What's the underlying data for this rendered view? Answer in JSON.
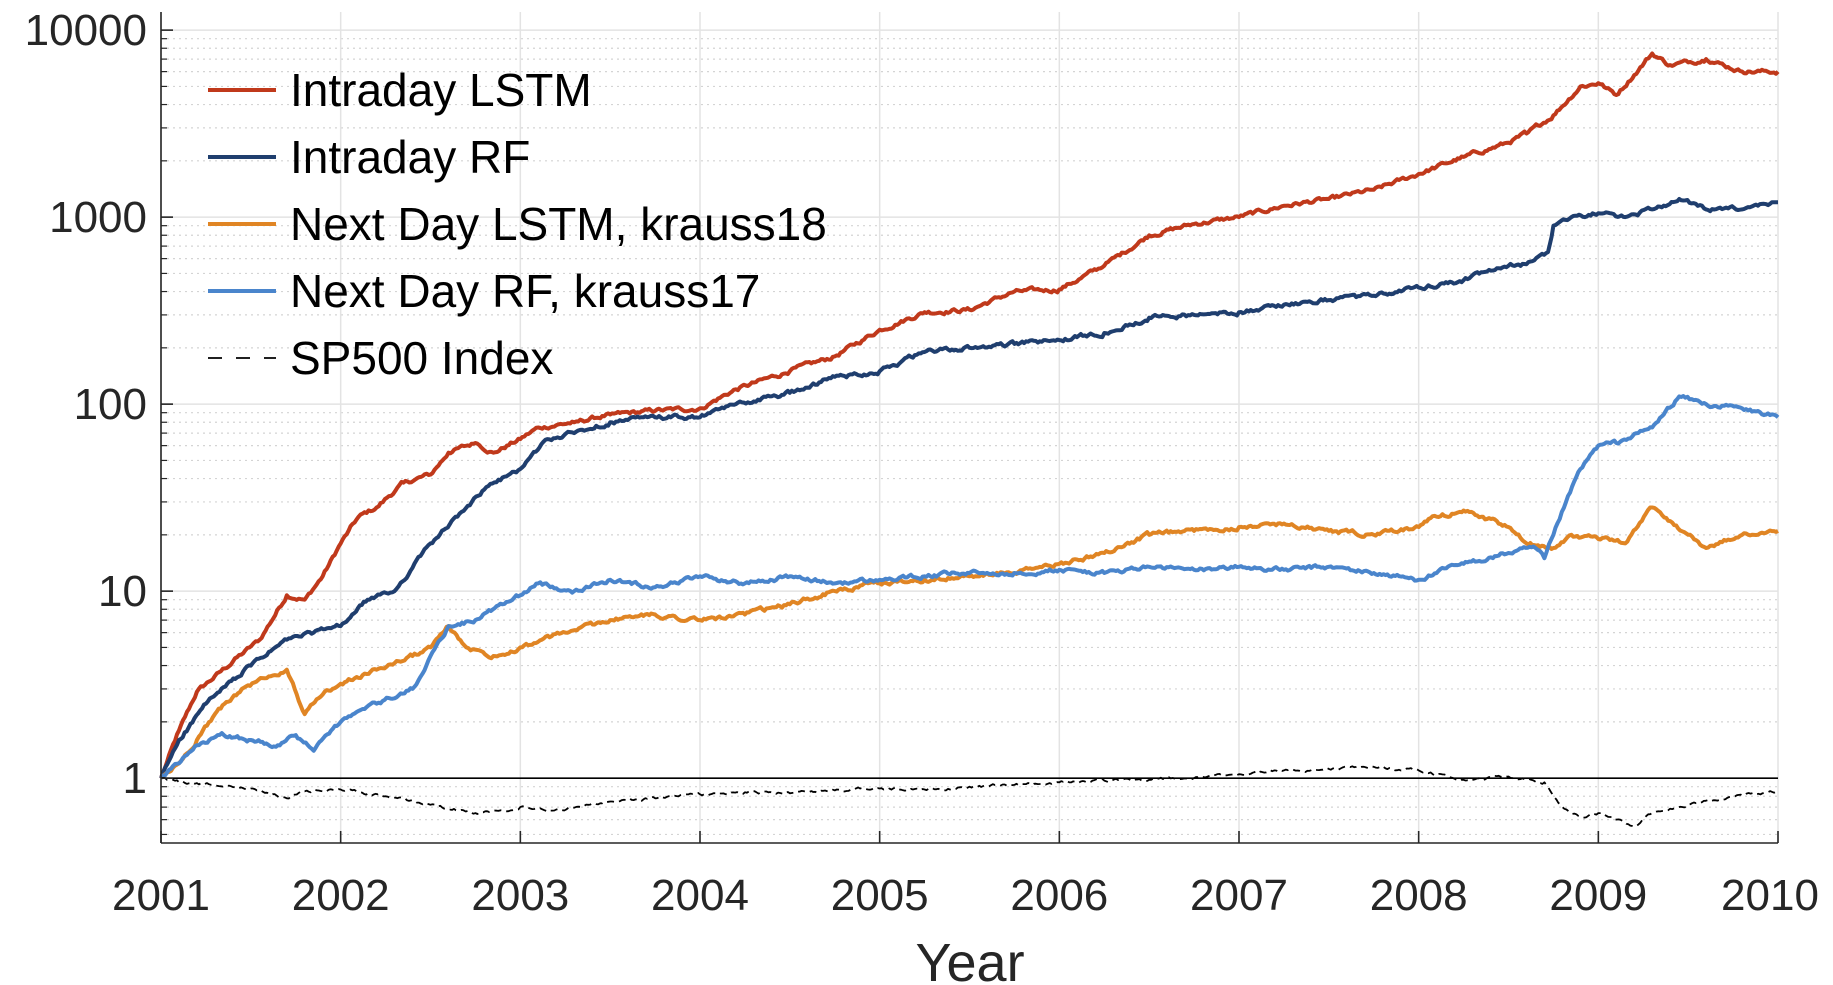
{
  "chart_data": {
    "type": "line",
    "yscale": "log",
    "title": "",
    "xlabel": "Year",
    "ylabel": "",
    "xlim": [
      2001,
      2010
    ],
    "ylim": [
      0.45,
      12500
    ],
    "grid": true,
    "legend_position": "top-left",
    "x_ticks": [
      2001,
      2002,
      2003,
      2004,
      2005,
      2006,
      2007,
      2008,
      2009,
      2010
    ],
    "x_tick_labels": [
      "2001",
      "2002",
      "2003",
      "2004",
      "2005",
      "2006",
      "2007",
      "2008",
      "2009",
      "2010"
    ],
    "y_ticks": [
      1,
      10,
      100,
      1000,
      10000
    ],
    "y_tick_labels": [
      "1",
      "10",
      "100",
      "1000",
      "10000"
    ],
    "reference_line": 1,
    "series": [
      {
        "name": "Intraday LSTM",
        "color": "#c0391b",
        "dashed": false,
        "x": [
          2001.0,
          2001.1,
          2001.2,
          2001.4,
          2001.55,
          2001.7,
          2001.8,
          2001.9,
          2002.0,
          2002.1,
          2002.2,
          2002.35,
          2002.5,
          2002.6,
          2002.75,
          2002.85,
          2003.0,
          2003.1,
          2003.3,
          2003.5,
          2003.75,
          2004.0,
          2004.2,
          2004.5,
          2004.75,
          2005.0,
          2005.25,
          2005.5,
          2005.75,
          2006.0,
          2006.25,
          2006.5,
          2006.75,
          2007.0,
          2007.25,
          2007.5,
          2007.75,
          2008.0,
          2008.25,
          2008.5,
          2008.6,
          2008.75,
          2008.9,
          2009.0,
          2009.1,
          2009.3,
          2009.4,
          2009.6,
          2009.8,
          2010.0
        ],
        "values": [
          1.0,
          1.8,
          2.9,
          4.2,
          5.5,
          9.5,
          9.0,
          12.0,
          18.0,
          25.0,
          28.0,
          38.0,
          42.0,
          55.0,
          62.0,
          55.0,
          65.0,
          75.0,
          80.0,
          88.0,
          92.0,
          95.0,
          120.0,
          150.0,
          180.0,
          250.0,
          310.0,
          320.0,
          400.0,
          410.0,
          550.0,
          800.0,
          920.0,
          1000.0,
          1150.0,
          1250.0,
          1400.0,
          1700.0,
          2100.0,
          2500.0,
          2800.0,
          3500.0,
          5000.0,
          5200.0,
          4500.0,
          7500.0,
          6500.0,
          7000.0,
          6000.0,
          6000.0
        ]
      },
      {
        "name": "Intraday RF",
        "color": "#1f3e6e",
        "dashed": false,
        "x": [
          2001.0,
          2001.1,
          2001.25,
          2001.5,
          2001.7,
          2001.85,
          2002.0,
          2002.15,
          2002.3,
          2002.5,
          2002.65,
          2002.8,
          2003.0,
          2003.15,
          2003.3,
          2003.5,
          2003.75,
          2004.0,
          2004.2,
          2004.5,
          2004.75,
          2005.0,
          2005.25,
          2005.5,
          2005.75,
          2006.0,
          2006.25,
          2006.5,
          2006.75,
          2007.0,
          2007.25,
          2007.5,
          2007.75,
          2008.0,
          2008.25,
          2008.5,
          2008.6,
          2008.72,
          2008.75,
          2008.85,
          2009.0,
          2009.15,
          2009.3,
          2009.45,
          2009.6,
          2009.8,
          2010.0
        ],
        "values": [
          1.0,
          1.6,
          2.5,
          4.0,
          5.5,
          6.0,
          6.5,
          9.0,
          10.0,
          18.0,
          25.0,
          35.0,
          45.0,
          65.0,
          70.0,
          80.0,
          85.0,
          85.0,
          100.0,
          115.0,
          140.0,
          150.0,
          190.0,
          200.0,
          210.0,
          220.0,
          240.0,
          290.0,
          300.0,
          310.0,
          340.0,
          360.0,
          380.0,
          420.0,
          460.0,
          550.0,
          560.0,
          650.0,
          900.0,
          1000.0,
          1050.0,
          1000.0,
          1100.0,
          1250.0,
          1100.0,
          1100.0,
          1200.0
        ]
      },
      {
        "name": "Next Day LSTM, krauss18",
        "color": "#e08524",
        "dashed": false,
        "x": [
          2001.0,
          2001.1,
          2001.2,
          2001.3,
          2001.45,
          2001.6,
          2001.7,
          2001.8,
          2001.9,
          2002.0,
          2002.2,
          2002.4,
          2002.5,
          2002.6,
          2002.7,
          2002.85,
          2003.0,
          2003.25,
          2003.5,
          2003.75,
          2004.0,
          2004.25,
          2004.5,
          2004.75,
          2005.0,
          2005.25,
          2005.5,
          2005.75,
          2006.0,
          2006.25,
          2006.5,
          2006.75,
          2007.0,
          2007.25,
          2007.5,
          2007.75,
          2008.0,
          2008.1,
          2008.25,
          2008.5,
          2008.6,
          2008.75,
          2008.85,
          2009.0,
          2009.15,
          2009.3,
          2009.5,
          2009.6,
          2009.8,
          2010.0
        ],
        "values": [
          1.0,
          1.2,
          1.6,
          2.2,
          3.0,
          3.5,
          3.8,
          2.2,
          2.8,
          3.2,
          3.8,
          4.5,
          5.0,
          6.5,
          5.0,
          4.5,
          5.0,
          6.0,
          7.0,
          7.5,
          7.0,
          7.5,
          8.5,
          10.0,
          11.0,
          11.5,
          12.0,
          12.5,
          14.0,
          16.0,
          20.0,
          21.0,
          22.0,
          23.0,
          21.0,
          20.0,
          22.0,
          25.0,
          27.0,
          22.0,
          18.0,
          17.0,
          20.0,
          19.0,
          18.0,
          28.0,
          20.0,
          17.0,
          20.0,
          21.0
        ]
      },
      {
        "name": "Next Day RF, krauss17",
        "color": "#4a85cc",
        "dashed": false,
        "x": [
          2001.0,
          2001.1,
          2001.2,
          2001.35,
          2001.5,
          2001.65,
          2001.75,
          2001.85,
          2002.0,
          2002.2,
          2002.4,
          2002.5,
          2002.6,
          2002.75,
          2002.9,
          2003.0,
          2003.1,
          2003.3,
          2003.5,
          2003.75,
          2004.0,
          2004.25,
          2004.5,
          2004.75,
          2005.0,
          2005.25,
          2005.5,
          2005.75,
          2006.0,
          2006.25,
          2006.5,
          2006.75,
          2007.0,
          2007.25,
          2007.5,
          2007.75,
          2008.0,
          2008.1,
          2008.25,
          2008.5,
          2008.65,
          2008.7,
          2008.75,
          2008.82,
          2008.9,
          2009.0,
          2009.1,
          2009.3,
          2009.45,
          2009.6,
          2009.8,
          2010.0
        ],
        "values": [
          1.0,
          1.2,
          1.5,
          1.7,
          1.6,
          1.5,
          1.7,
          1.4,
          2.0,
          2.5,
          3.0,
          4.5,
          6.5,
          7.0,
          8.5,
          9.5,
          11.0,
          10.0,
          11.5,
          10.5,
          12.0,
          11.0,
          12.0,
          11.0,
          11.5,
          12.0,
          12.5,
          12.5,
          13.0,
          12.5,
          13.5,
          13.0,
          13.5,
          13.0,
          13.5,
          12.5,
          11.5,
          12.5,
          14.0,
          16.0,
          17.0,
          15.0,
          20.0,
          30.0,
          45.0,
          60.0,
          62.0,
          75.0,
          110.0,
          100.0,
          95.0,
          85.0
        ]
      },
      {
        "name": "SP500 Index",
        "color": "#000000",
        "dashed": true,
        "x": [
          2001.0,
          2001.1,
          2001.3,
          2001.5,
          2001.7,
          2001.8,
          2002.0,
          2002.25,
          2002.5,
          2002.75,
          2003.0,
          2003.2,
          2003.5,
          2003.75,
          2004.0,
          2004.25,
          2004.5,
          2004.75,
          2005.0,
          2005.25,
          2005.5,
          2005.75,
          2006.0,
          2006.25,
          2006.5,
          2006.75,
          2007.0,
          2007.25,
          2007.5,
          2007.75,
          2008.0,
          2008.1,
          2008.25,
          2008.5,
          2008.7,
          2008.8,
          2008.9,
          2009.0,
          2009.1,
          2009.2,
          2009.3,
          2009.5,
          2009.75,
          2010.0
        ],
        "values": [
          1.0,
          0.95,
          0.92,
          0.88,
          0.78,
          0.85,
          0.87,
          0.8,
          0.72,
          0.65,
          0.7,
          0.68,
          0.75,
          0.78,
          0.82,
          0.84,
          0.83,
          0.86,
          0.88,
          0.87,
          0.9,
          0.92,
          0.95,
          0.97,
          0.98,
          1.0,
          1.05,
          1.1,
          1.12,
          1.15,
          1.1,
          1.05,
          0.98,
          1.02,
          0.95,
          0.7,
          0.62,
          0.65,
          0.6,
          0.55,
          0.65,
          0.72,
          0.8,
          0.85
        ]
      }
    ]
  }
}
